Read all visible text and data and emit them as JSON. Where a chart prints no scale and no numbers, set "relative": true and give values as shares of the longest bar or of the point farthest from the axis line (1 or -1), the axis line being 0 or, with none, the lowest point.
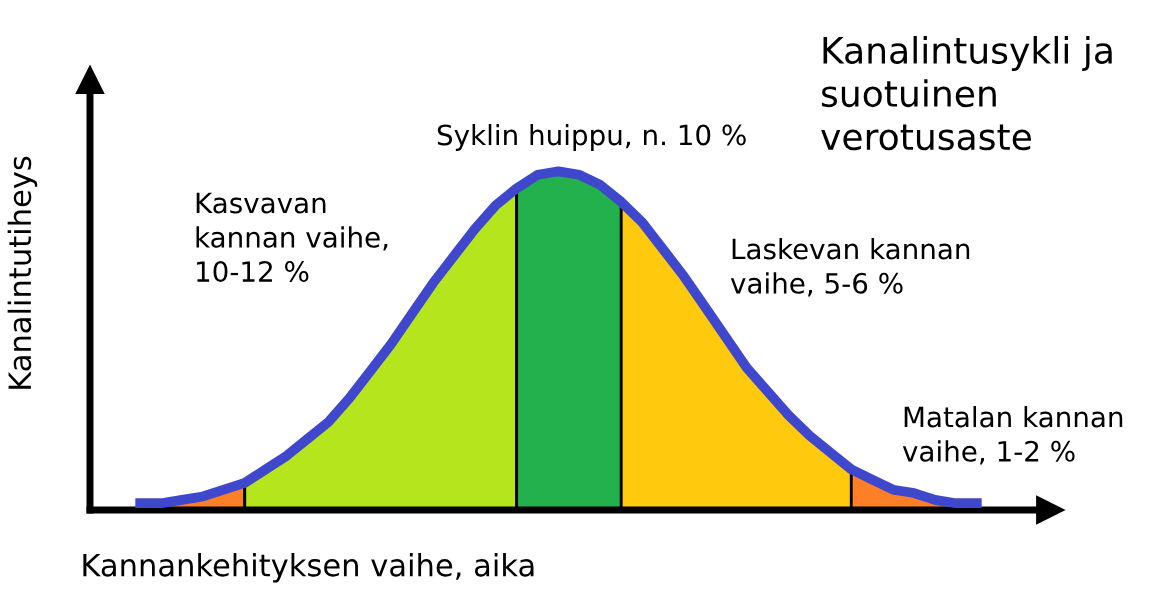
{
  "chart_data": {
    "type": "area",
    "relative": true,
    "legend": false,
    "title": "Kanalintusykli ja\nsuotuinen\nverotusaste",
    "xlabel": "Kannankehityksen vaihe, aika",
    "ylabel": "Kanalintutiheys",
    "annotations": [
      "Syklin huippu, n. 10 %",
      "Kasvavan\nkannan vaihe,\n10-12 %",
      "Laskevan kannan\nvaihe, 5-6 %",
      "Matalan kannan\nvaihe, 1-2 %"
    ],
    "categories": [
      null,
      null,
      null,
      null,
      null,
      null,
      null,
      null,
      null,
      null,
      null,
      null,
      null,
      null,
      null,
      null,
      null,
      null,
      null,
      null,
      null,
      null,
      null,
      null,
      null,
      null,
      null,
      null,
      null,
      null,
      null,
      null,
      null,
      null,
      null,
      null,
      null,
      null,
      null,
      null,
      null
    ],
    "series": [
      {
        "color": "#ff7f27",
        "values": [
          0.02,
          0.02,
          0.03,
          0.04,
          0.06,
          0.08,
          null,
          null,
          null,
          null,
          null,
          null,
          null,
          null,
          null,
          null,
          null,
          null,
          null,
          null,
          null,
          null,
          null,
          null,
          null,
          null,
          null,
          null,
          null,
          null,
          null,
          null,
          null,
          null,
          null,
          null,
          null,
          null,
          null,
          null,
          null
        ]
      },
      {
        "color": "#b5e61d",
        "values": [
          null,
          null,
          null,
          null,
          null,
          0.08,
          0.12,
          0.16,
          0.21,
          0.26,
          0.33,
          0.41,
          0.49,
          0.58,
          0.67,
          0.75,
          0.83,
          0.9,
          0.95,
          null,
          null,
          null,
          null,
          null,
          null,
          null,
          null,
          null,
          null,
          null,
          null,
          null,
          null,
          null,
          null,
          null,
          null,
          null,
          null,
          null,
          null
        ]
      },
      {
        "color": "#22b14c",
        "values": [
          null,
          null,
          null,
          null,
          null,
          null,
          null,
          null,
          null,
          null,
          null,
          null,
          null,
          null,
          null,
          null,
          null,
          null,
          0.95,
          0.99,
          1.0,
          0.99,
          0.96,
          0.91,
          null,
          null,
          null,
          null,
          null,
          null,
          null,
          null,
          null,
          null,
          null,
          null,
          null,
          null,
          null,
          null,
          null
        ]
      },
      {
        "color": "#ffc90e",
        "values": [
          null,
          null,
          null,
          null,
          null,
          null,
          null,
          null,
          null,
          null,
          null,
          null,
          null,
          null,
          null,
          null,
          null,
          null,
          null,
          null,
          null,
          null,
          null,
          0.91,
          0.85,
          0.77,
          0.69,
          0.6,
          0.51,
          0.42,
          0.35,
          0.28,
          0.22,
          0.17,
          0.12,
          null,
          null,
          null,
          null,
          null,
          null
        ]
      },
      {
        "color": "#ff7f27",
        "values": [
          null,
          null,
          null,
          null,
          null,
          null,
          null,
          null,
          null,
          null,
          null,
          null,
          null,
          null,
          null,
          null,
          null,
          null,
          null,
          null,
          null,
          null,
          null,
          null,
          null,
          null,
          null,
          null,
          null,
          null,
          null,
          null,
          null,
          null,
          0.12,
          0.09,
          0.06,
          0.05,
          0.03,
          0.02,
          0.02
        ]
      },
      {
        "type": "line",
        "color": "#3f48cc",
        "values": [
          0.02,
          0.02,
          0.03,
          0.04,
          0.06,
          0.08,
          0.12,
          0.16,
          0.21,
          0.26,
          0.33,
          0.41,
          0.49,
          0.58,
          0.67,
          0.75,
          0.83,
          0.9,
          0.95,
          0.99,
          1.0,
          0.99,
          0.96,
          0.91,
          0.85,
          0.77,
          0.69,
          0.6,
          0.51,
          0.42,
          0.35,
          0.28,
          0.22,
          0.17,
          0.12,
          0.09,
          0.06,
          0.05,
          0.03,
          0.02,
          0.02
        ]
      }
    ]
  }
}
